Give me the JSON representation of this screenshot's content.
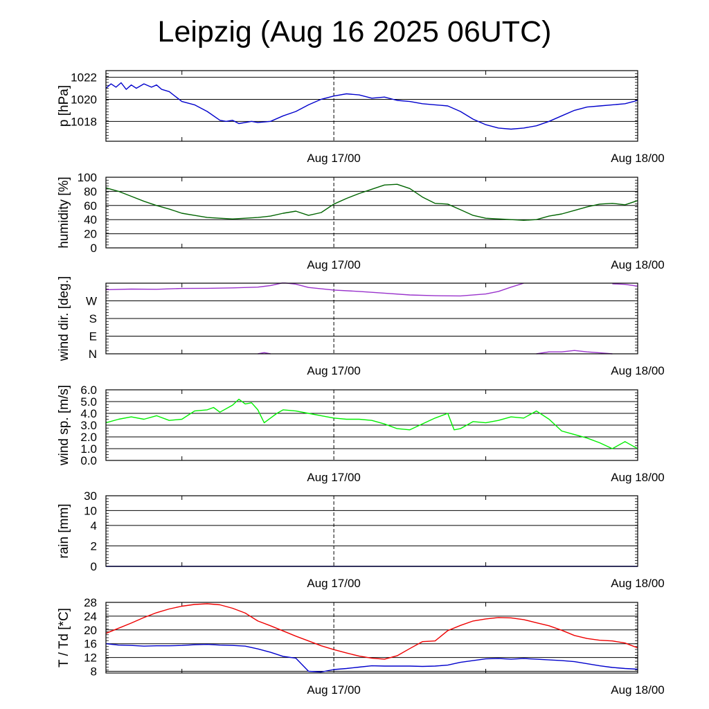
{
  "title": "Leipzig (Aug 16 2025 06UTC)",
  "time_axis": {
    "start_hour": 0,
    "end_hour": 42,
    "unit": "hours since Aug 16 06UTC",
    "minor_tick_hours": [
      6,
      30
    ],
    "marker_hour": 18,
    "labels": [
      {
        "hour": 18,
        "text": "Aug 17/00"
      },
      {
        "hour": 42,
        "text": "Aug 18/00"
      }
    ]
  },
  "chart_data": [
    {
      "id": "pressure",
      "type": "line",
      "ylabel": "p [hPa]",
      "ylim": [
        1016.2,
        1022.6
      ],
      "ticks": [
        {
          "v": 1018,
          "label": "1018"
        },
        {
          "v": 1020,
          "label": "1020"
        },
        {
          "v": 1022,
          "label": "1022"
        }
      ],
      "series": [
        {
          "name": "pressure",
          "color": "#0000cc",
          "x": [
            0,
            0.4,
            0.8,
            1.2,
            1.6,
            2,
            2.4,
            3,
            3.6,
            4,
            4.4,
            5,
            6,
            7,
            8,
            9,
            9.5,
            10,
            10.5,
            11,
            11.5,
            12,
            13,
            14,
            15,
            16,
            17,
            18,
            19,
            20,
            21,
            22,
            23,
            24,
            25,
            26,
            27,
            28,
            29,
            30,
            31,
            32,
            33,
            34,
            35,
            36,
            37,
            38,
            39,
            40,
            41,
            42
          ],
          "values": [
            1021,
            1021.4,
            1021.1,
            1021.5,
            1020.9,
            1021.3,
            1021.0,
            1021.4,
            1021.1,
            1021.3,
            1020.9,
            1020.7,
            1019.8,
            1019.5,
            1018.9,
            1018.1,
            1018.0,
            1018.1,
            1017.8,
            1017.9,
            1018.0,
            1017.9,
            1018.0,
            1018.5,
            1018.9,
            1019.5,
            1020.0,
            1020.3,
            1020.5,
            1020.4,
            1020.1,
            1020.2,
            1019.9,
            1019.8,
            1019.6,
            1019.5,
            1019.4,
            1018.9,
            1018.2,
            1017.7,
            1017.4,
            1017.3,
            1017.4,
            1017.6,
            1018.0,
            1018.5,
            1019.0,
            1019.3,
            1019.4,
            1019.5,
            1019.6,
            1019.9
          ]
        }
      ]
    },
    {
      "id": "humidity",
      "type": "line",
      "ylabel": "humidity [%]",
      "ylim": [
        0,
        100
      ],
      "ticks": [
        {
          "v": 0,
          "label": "0"
        },
        {
          "v": 20,
          "label": "20"
        },
        {
          "v": 40,
          "label": "40"
        },
        {
          "v": 60,
          "label": "60"
        },
        {
          "v": 80,
          "label": "80"
        },
        {
          "v": 100,
          "label": "100"
        }
      ],
      "series": [
        {
          "name": "humidity",
          "color": "#006400",
          "x": [
            0,
            1,
            2,
            3,
            4,
            5,
            6,
            7,
            8,
            9,
            10,
            11,
            12,
            13,
            14,
            15,
            16,
            17,
            18,
            19,
            20,
            21,
            22,
            23,
            24,
            25,
            26,
            27,
            28,
            29,
            30,
            31,
            32,
            33,
            34,
            35,
            36,
            37,
            38,
            39,
            40,
            41,
            42
          ],
          "values": [
            85,
            80,
            73,
            66,
            60,
            55,
            49,
            46,
            43,
            42,
            41,
            42,
            43,
            45,
            49,
            52,
            46,
            50,
            62,
            70,
            77,
            83,
            89,
            90,
            84,
            72,
            63,
            62,
            54,
            46,
            42,
            41,
            40,
            39,
            40,
            45,
            48,
            53,
            58,
            62,
            63,
            61,
            67
          ]
        }
      ]
    },
    {
      "id": "wind_direction",
      "type": "line",
      "ylabel": "wind dir. [deg.]",
      "ylim": [
        0,
        360
      ],
      "ticks": [
        {
          "v": 0,
          "label": "N"
        },
        {
          "v": 90,
          "label": "E"
        },
        {
          "v": 180,
          "label": "S"
        },
        {
          "v": 270,
          "label": "W"
        }
      ],
      "series": [
        {
          "name": "wind direction (main)",
          "color": "#9932cc",
          "x": [
            0,
            2,
            4,
            6,
            8,
            10,
            12,
            13,
            14,
            15,
            16,
            18,
            20,
            22,
            24,
            26,
            28,
            30,
            31,
            32,
            33
          ],
          "values": [
            327,
            330,
            329,
            333,
            334,
            336,
            340,
            348,
            362,
            355,
            338,
            325,
            318,
            309,
            300,
            296,
            295,
            305,
            318,
            340,
            360
          ]
        },
        {
          "name": "wind direction (wrap 1)",
          "color": "#9932cc",
          "x": [
            12,
            12.5,
            13
          ],
          "values": [
            0,
            6,
            0
          ]
        },
        {
          "name": "wind direction (wrap 2)",
          "color": "#9932cc",
          "x": [
            34,
            35,
            36,
            37,
            38,
            39,
            40
          ],
          "values": [
            0,
            10,
            10,
            17,
            10,
            5,
            0
          ]
        },
        {
          "name": "wind direction (wrap 3)",
          "color": "#9932cc",
          "x": [
            40,
            41,
            42
          ],
          "values": [
            357,
            354,
            345
          ]
        }
      ]
    },
    {
      "id": "wind_speed",
      "type": "line",
      "ylabel": "wind sp. [m/s]",
      "ylim": [
        0,
        6
      ],
      "ticks": [
        {
          "v": 0,
          "label": "0.0"
        },
        {
          "v": 1,
          "label": "1.0"
        },
        {
          "v": 2,
          "label": "2.0"
        },
        {
          "v": 3,
          "label": "3.0"
        },
        {
          "v": 4,
          "label": "4.0"
        },
        {
          "v": 5,
          "label": "5.0"
        },
        {
          "v": 6,
          "label": "6.0"
        }
      ],
      "series": [
        {
          "name": "wind speed",
          "color": "#00ee00",
          "x": [
            0,
            1,
            2,
            3,
            4,
            5,
            6,
            7,
            8,
            8.5,
            9,
            10,
            10.5,
            11,
            11.5,
            12,
            12.5,
            13,
            13.5,
            14,
            15,
            16,
            17,
            18,
            19,
            20,
            21,
            22,
            23,
            24,
            25,
            26,
            27,
            27.5,
            28,
            29,
            30,
            31,
            32,
            33,
            34,
            35,
            36,
            37,
            38,
            39,
            40,
            41,
            42
          ],
          "values": [
            3.2,
            3.5,
            3.7,
            3.5,
            3.8,
            3.4,
            3.5,
            4.2,
            4.3,
            4.5,
            4.1,
            4.7,
            5.2,
            4.8,
            4.9,
            4.3,
            3.2,
            3.6,
            4.0,
            4.3,
            4.2,
            4.0,
            3.8,
            3.6,
            3.5,
            3.5,
            3.4,
            3.1,
            2.7,
            2.6,
            3.1,
            3.6,
            4.0,
            2.6,
            2.7,
            3.3,
            3.2,
            3.4,
            3.7,
            3.6,
            4.2,
            3.5,
            2.5,
            2.2,
            1.9,
            1.5,
            1.0,
            1.6,
            1.0
          ]
        }
      ]
    },
    {
      "id": "rain",
      "type": "line",
      "ylabel": "rain [mm]",
      "ylim": [
        0,
        30
      ],
      "scale": "piecewise",
      "ticks": [
        {
          "v": 0,
          "label": "0"
        },
        {
          "v": 2,
          "label": "2"
        },
        {
          "v": 4,
          "label": "4"
        },
        {
          "v": 10,
          "label": "10"
        },
        {
          "v": 30,
          "label": "30"
        }
      ],
      "series": [
        {
          "name": "rain",
          "color": "#0000cc",
          "x": [
            0,
            42
          ],
          "values": [
            0,
            0
          ]
        }
      ]
    },
    {
      "id": "temperature",
      "type": "line",
      "ylabel": "T / Td [*C]",
      "ylim": [
        7.5,
        28
      ],
      "ticks": [
        {
          "v": 8,
          "label": "8"
        },
        {
          "v": 12,
          "label": "12"
        },
        {
          "v": 16,
          "label": "16"
        },
        {
          "v": 20,
          "label": "20"
        },
        {
          "v": 24,
          "label": "24"
        },
        {
          "v": 28,
          "label": "28"
        }
      ],
      "series": [
        {
          "name": "T",
          "color": "#ee0000",
          "x": [
            0,
            1,
            2,
            3,
            4,
            5,
            6,
            7,
            8,
            9,
            10,
            11,
            12,
            13,
            14,
            15,
            16,
            17,
            18,
            19,
            20,
            21,
            22,
            23,
            24,
            25,
            26,
            27,
            28,
            29,
            30,
            31,
            32,
            33,
            34,
            35,
            36,
            37,
            38,
            39,
            40,
            41,
            42
          ],
          "values": [
            19.0,
            20.5,
            22.0,
            23.6,
            25.0,
            26.1,
            26.9,
            27.4,
            27.6,
            27.3,
            26.3,
            24.9,
            22.6,
            21.2,
            19.7,
            18.2,
            16.8,
            15.4,
            14.3,
            13.3,
            12.4,
            11.8,
            11.5,
            12.5,
            14.6,
            16.6,
            16.8,
            19.8,
            21.3,
            22.6,
            23.2,
            23.6,
            23.5,
            23.0,
            22.1,
            21.2,
            19.9,
            18.4,
            17.5,
            17.0,
            16.8,
            16.2,
            14.8
          ]
        },
        {
          "name": "Td",
          "color": "#0000cc",
          "x": [
            0,
            1,
            2,
            3,
            4,
            5,
            6,
            7,
            8,
            9,
            10,
            11,
            12,
            13,
            14,
            15,
            16,
            17,
            18,
            19,
            20,
            21,
            22,
            23,
            24,
            25,
            26,
            27,
            28,
            29,
            30,
            31,
            32,
            33,
            34,
            35,
            36,
            37,
            38,
            39,
            40,
            41,
            42
          ],
          "values": [
            16.0,
            15.6,
            15.5,
            15.3,
            15.4,
            15.4,
            15.5,
            15.7,
            15.8,
            15.6,
            15.5,
            15.3,
            14.5,
            13.5,
            12.3,
            11.8,
            8.0,
            7.8,
            8.5,
            8.8,
            9.2,
            9.6,
            9.5,
            9.5,
            9.5,
            9.4,
            9.5,
            9.8,
            10.6,
            11.1,
            11.6,
            11.7,
            11.5,
            11.7,
            11.5,
            11.3,
            11.1,
            10.8,
            10.2,
            9.6,
            9.1,
            8.8,
            8.6
          ]
        }
      ]
    }
  ]
}
